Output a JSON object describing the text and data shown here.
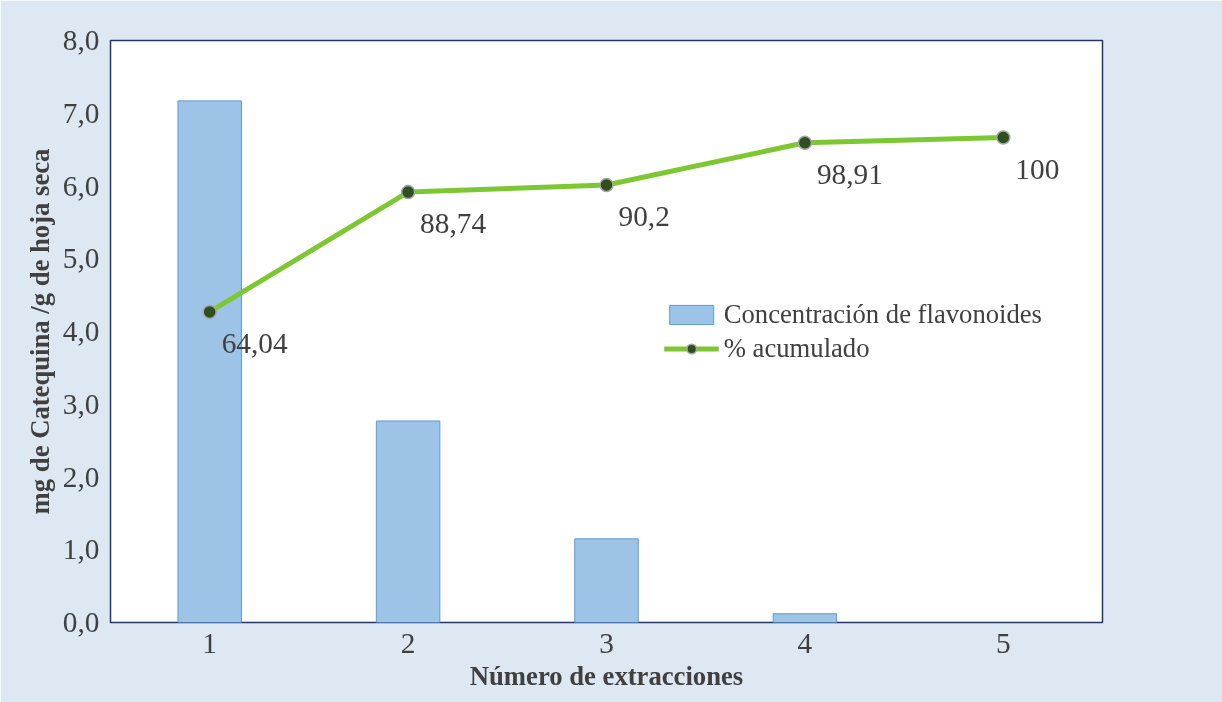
{
  "chart_data": {
    "type": "bar",
    "xlabel": "Número de extracciones",
    "ylabel": "mg de Catequina /g de hoja seca",
    "categories": [
      "1",
      "2",
      "3",
      "4",
      "5"
    ],
    "series": [
      {
        "name": "Concentración de flavonoides",
        "color": "#9dc3e6",
        "values": [
          7.17,
          2.77,
          1.15,
          0.12,
          0
        ]
      },
      {
        "name": "% acumulado",
        "type": "line",
        "axis": "y2",
        "color": "#7dc832",
        "values": [
          64.04,
          88.74,
          90.2,
          98.91,
          100
        ],
        "value_labels": [
          "64,04",
          "88,74",
          "90,2",
          "98,91",
          "100"
        ]
      }
    ],
    "ylim": [
      0,
      8
    ],
    "yticks": [
      {
        "value": 0,
        "label": "0,0"
      },
      {
        "value": 1,
        "label": "1,0"
      },
      {
        "value": 2,
        "label": "2,0"
      },
      {
        "value": 3,
        "label": "3,0"
      },
      {
        "value": 4,
        "label": "4,0"
      },
      {
        "value": 5,
        "label": "5,0"
      },
      {
        "value": 6,
        "label": "6,0"
      },
      {
        "value": 7,
        "label": "7,0"
      },
      {
        "value": 8,
        "label": "8,0"
      }
    ],
    "y2lim": [
      0,
      120
    ],
    "marker": "circle",
    "grid": false,
    "legend": "right"
  }
}
